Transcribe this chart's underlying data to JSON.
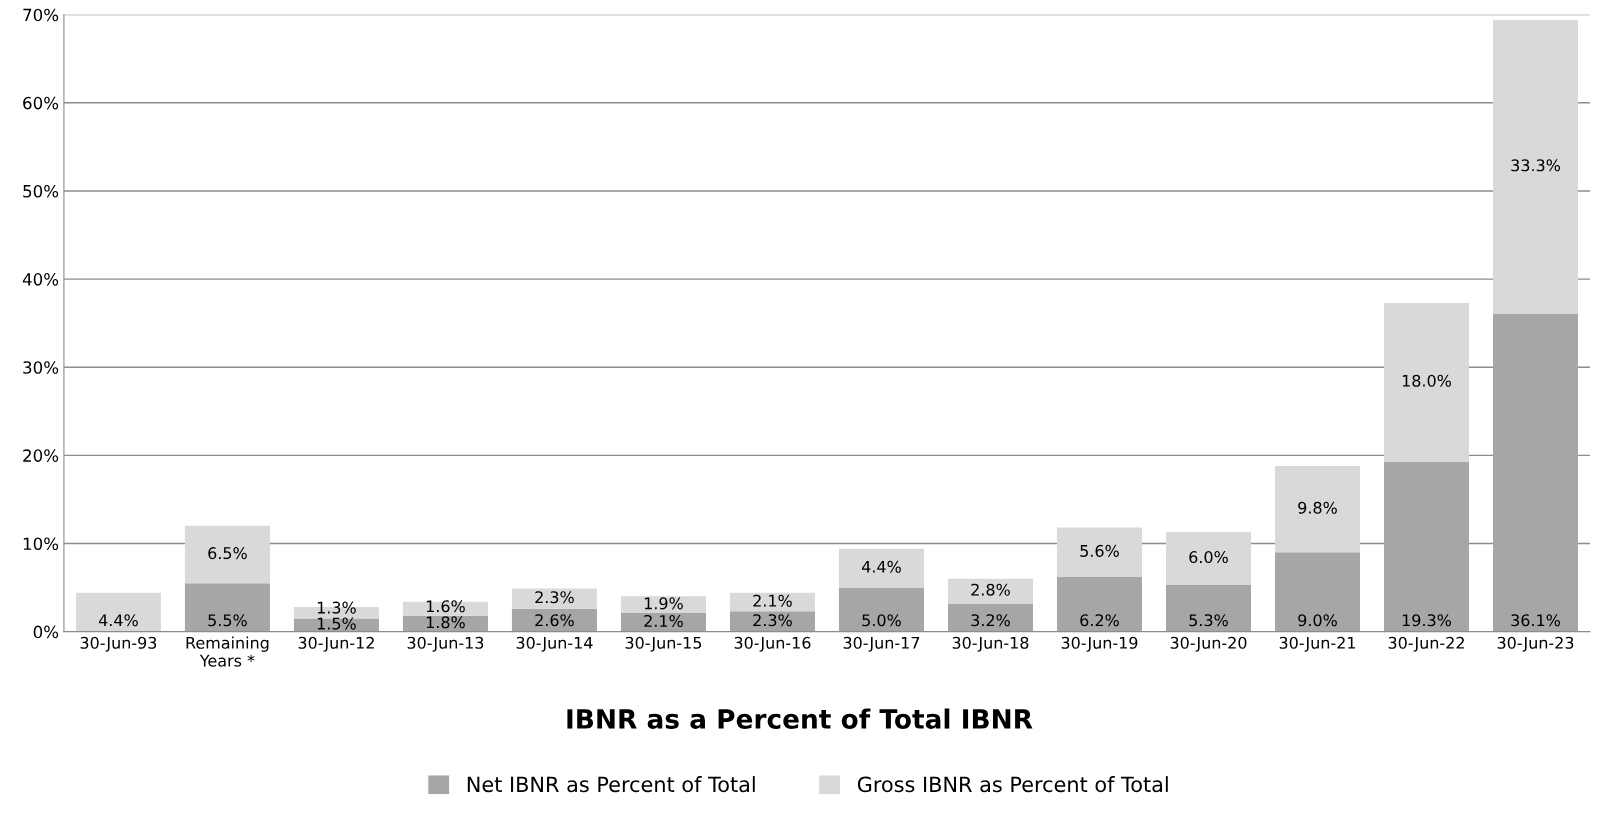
{
  "chart_data": {
    "type": "bar",
    "stacked": true,
    "title": "IBNR as a Percent of Total IBNR",
    "categories": [
      "30-Jun-93",
      "Remaining\nYears *",
      "30-Jun-12",
      "30-Jun-13",
      "30-Jun-14",
      "30-Jun-15",
      "30-Jun-16",
      "30-Jun-17",
      "30-Jun-18",
      "30-Jun-19",
      "30-Jun-20",
      "30-Jun-21",
      "30-Jun-22",
      "30-Jun-23"
    ],
    "series": [
      {
        "name": "Net IBNR as Percent of Total",
        "color": "#a6a6a6",
        "values": [
          null,
          5.5,
          1.5,
          1.8,
          2.6,
          2.1,
          2.3,
          5.0,
          3.2,
          6.2,
          5.3,
          9.0,
          19.3,
          36.1
        ],
        "value_labels": [
          null,
          "5.5%",
          "1.5%",
          "1.8%",
          "2.6%",
          "2.1%",
          "2.3%",
          "5.0%",
          "3.2%",
          "6.2%",
          "5.3%",
          "9.0%",
          "19.3%",
          "36.1%"
        ]
      },
      {
        "name": "Gross IBNR as Percent of Total",
        "color": "#d9d9d9",
        "values": [
          4.4,
          6.5,
          1.3,
          1.6,
          2.3,
          1.9,
          2.1,
          4.4,
          2.8,
          5.6,
          6.0,
          9.8,
          18.0,
          33.3
        ],
        "value_labels": [
          "4.4%",
          "6.5%",
          "1.3%",
          "1.6%",
          "2.3%",
          "1.9%",
          "2.1%",
          "4.4%",
          "2.8%",
          "5.6%",
          "6.0%",
          "9.8%",
          "18.0%",
          "33.3%"
        ]
      }
    ],
    "ylim": [
      0,
      70
    ],
    "yticks": [
      {
        "value": 0,
        "label": "0%"
      },
      {
        "value": 10,
        "label": "10%"
      },
      {
        "value": 20,
        "label": "20%"
      },
      {
        "value": 30,
        "label": "30%"
      },
      {
        "value": 40,
        "label": "40%"
      },
      {
        "value": 50,
        "label": "50%"
      },
      {
        "value": 60,
        "label": "60%"
      },
      {
        "value": 70,
        "label": "70%"
      }
    ],
    "grid": "y",
    "legend": "bottom"
  }
}
